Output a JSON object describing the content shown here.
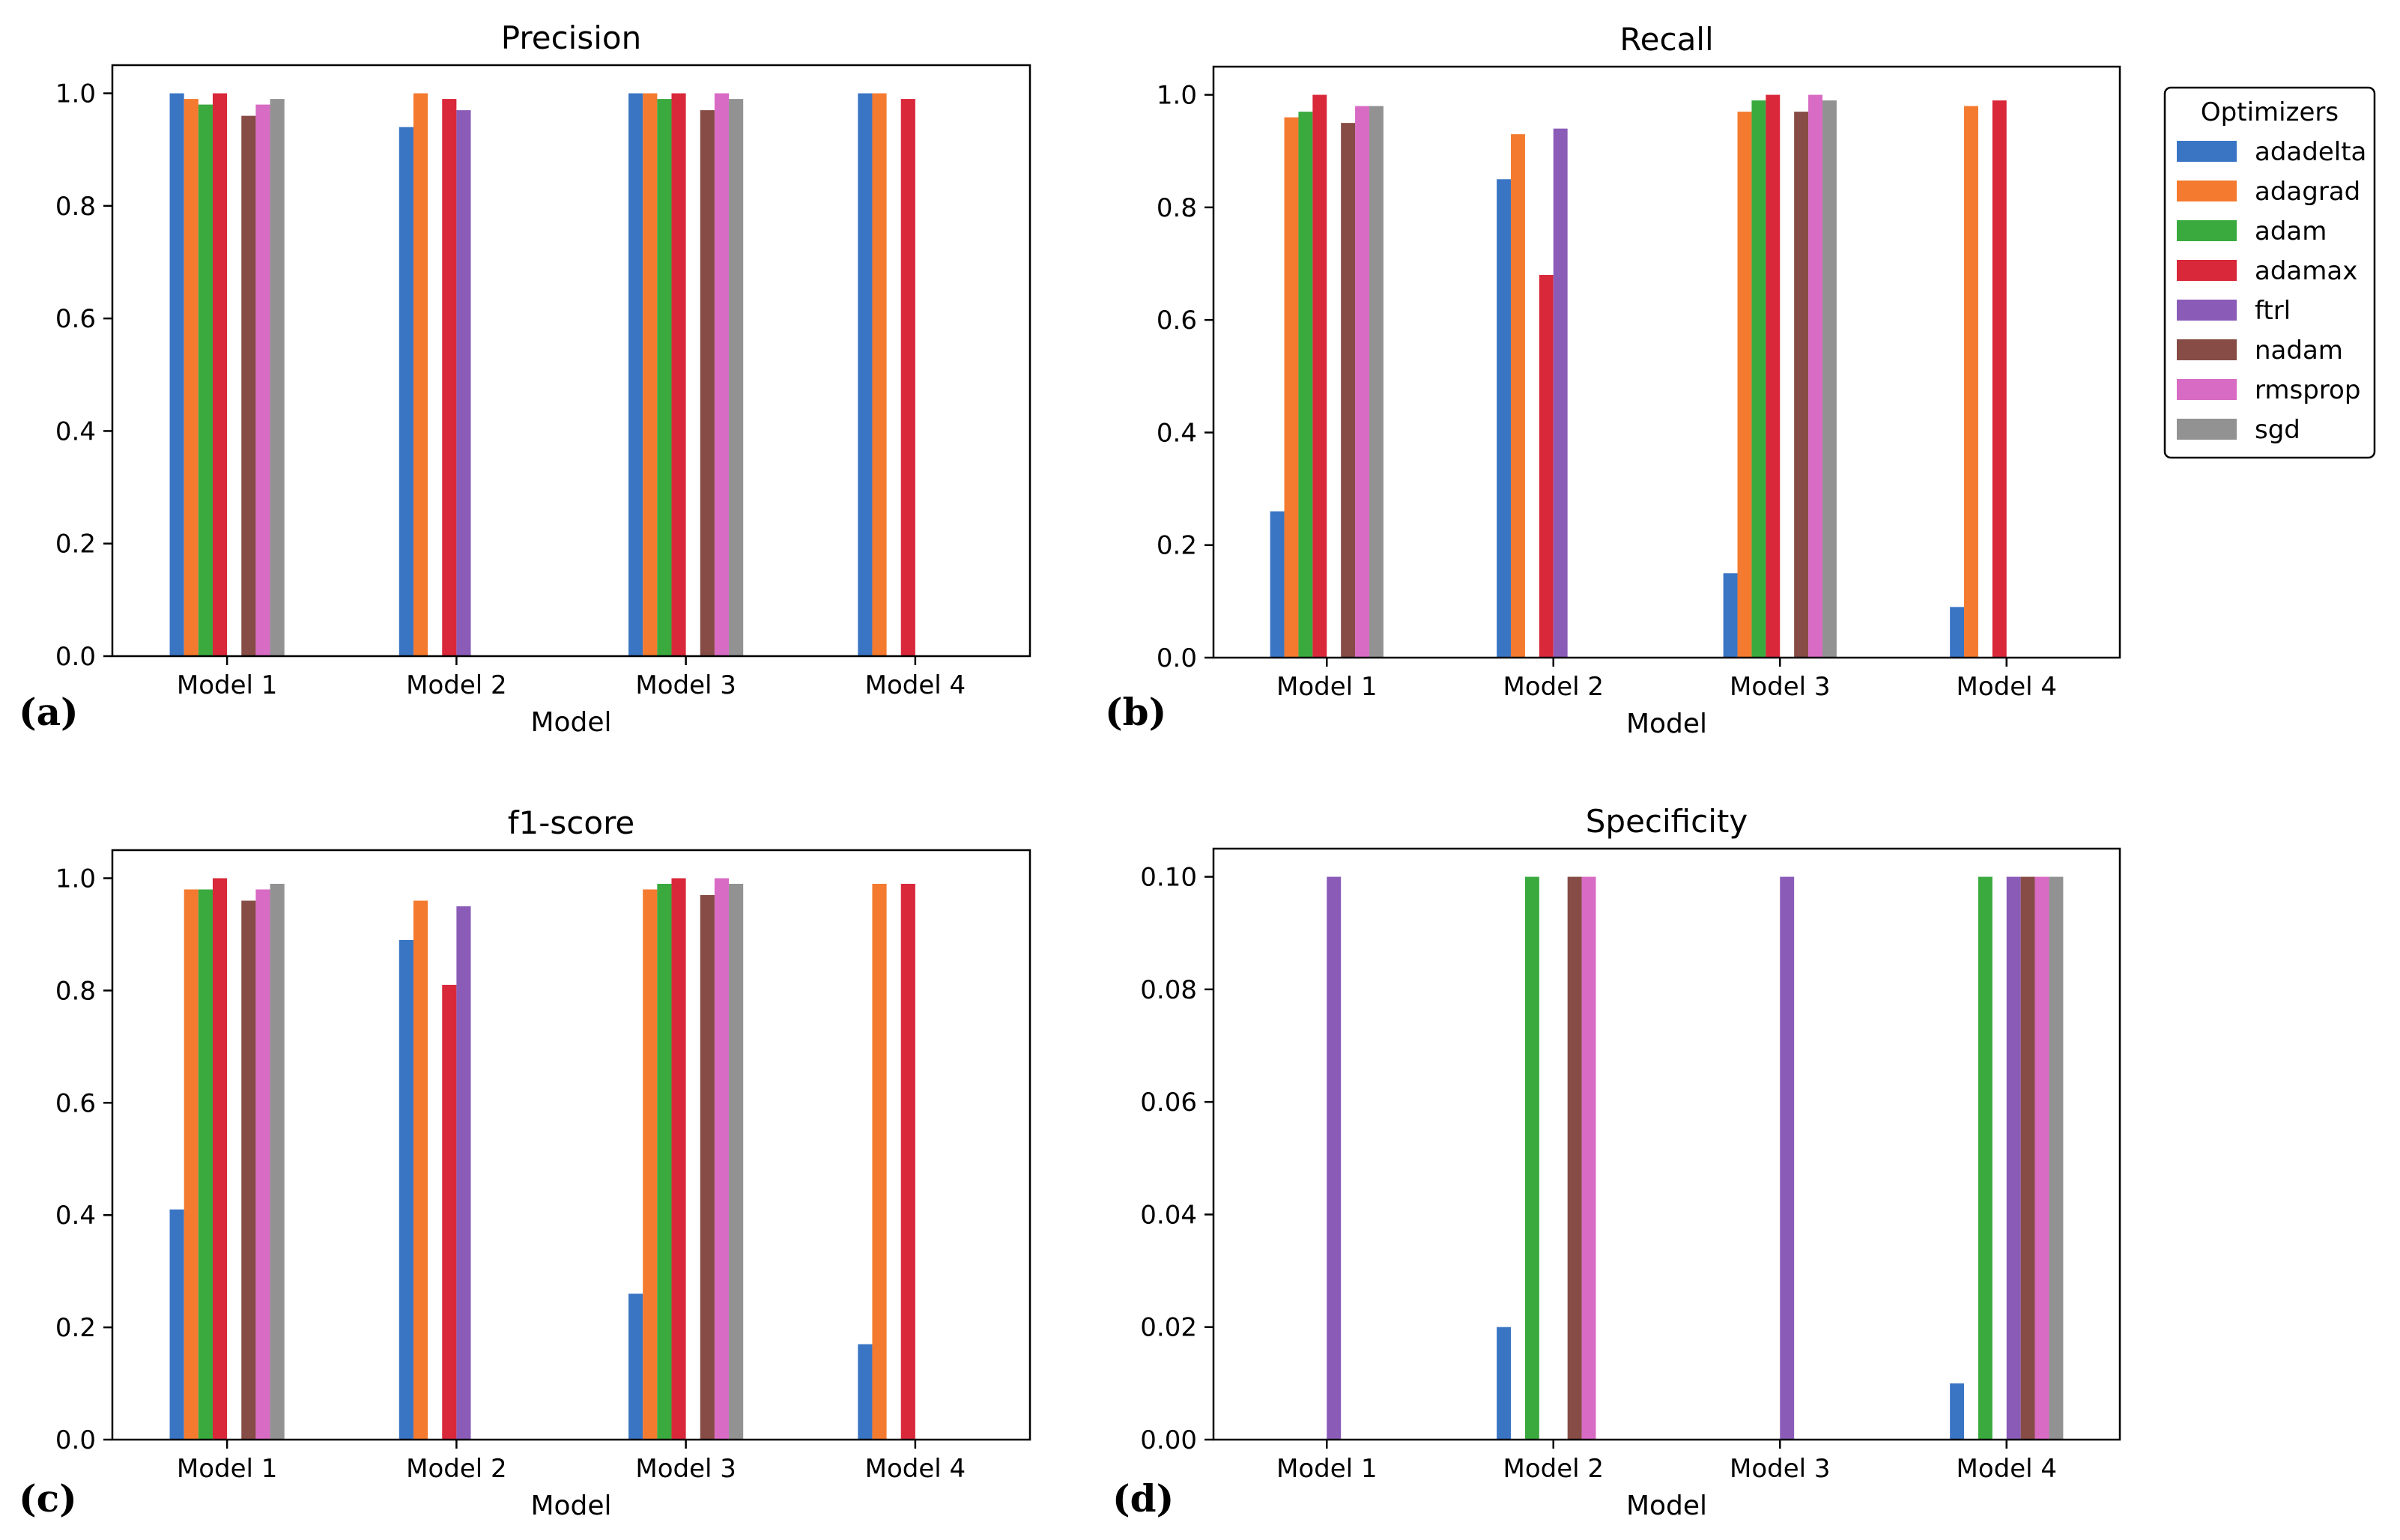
{
  "chart_data": [
    {
      "type": "bar",
      "title": "Precision",
      "xlabel": "Model",
      "ylabel": "",
      "panel_label": "(a)",
      "categories": [
        "Model 1",
        "Model 2",
        "Model 3",
        "Model 4"
      ],
      "ylim": [
        0,
        1.05
      ],
      "yticks": [
        "0.0",
        "0.2",
        "0.4",
        "0.6",
        "0.8",
        "1.0"
      ],
      "series": [
        {
          "name": "adadelta",
          "values": [
            1.0,
            0.94,
            1.0,
            1.0
          ]
        },
        {
          "name": "adagrad",
          "values": [
            0.99,
            1.0,
            1.0,
            1.0
          ]
        },
        {
          "name": "adam",
          "values": [
            0.98,
            0.0,
            0.99,
            0.0
          ]
        },
        {
          "name": "adamax",
          "values": [
            1.0,
            0.99,
            1.0,
            0.99
          ]
        },
        {
          "name": "ftrl",
          "values": [
            0.0,
            0.97,
            0.0,
            0.0
          ]
        },
        {
          "name": "nadam",
          "values": [
            0.96,
            0.0,
            0.97,
            0.0
          ]
        },
        {
          "name": "rmsprop",
          "values": [
            0.98,
            0.0,
            1.0,
            0.0
          ]
        },
        {
          "name": "sgd",
          "values": [
            0.99,
            0.0,
            0.99,
            0.0
          ]
        }
      ]
    },
    {
      "type": "bar",
      "title": "Recall",
      "xlabel": "Model",
      "ylabel": "",
      "panel_label": "(b)",
      "categories": [
        "Model 1",
        "Model 2",
        "Model 3",
        "Model 4"
      ],
      "ylim": [
        0,
        1.05
      ],
      "yticks": [
        "0.0",
        "0.2",
        "0.4",
        "0.6",
        "0.8",
        "1.0"
      ],
      "series": [
        {
          "name": "adadelta",
          "values": [
            0.26,
            0.85,
            0.15,
            0.09
          ]
        },
        {
          "name": "adagrad",
          "values": [
            0.96,
            0.93,
            0.97,
            0.98
          ]
        },
        {
          "name": "adam",
          "values": [
            0.97,
            0.0,
            0.99,
            0.0
          ]
        },
        {
          "name": "adamax",
          "values": [
            1.0,
            0.68,
            1.0,
            0.99
          ]
        },
        {
          "name": "ftrl",
          "values": [
            0.0,
            0.94,
            0.0,
            0.0
          ]
        },
        {
          "name": "nadam",
          "values": [
            0.95,
            0.0,
            0.97,
            0.0
          ]
        },
        {
          "name": "rmsprop",
          "values": [
            0.98,
            0.0,
            1.0,
            0.0
          ]
        },
        {
          "name": "sgd",
          "values": [
            0.98,
            0.0,
            0.99,
            0.0
          ]
        }
      ]
    },
    {
      "type": "bar",
      "title": "f1-score",
      "xlabel": "Model",
      "ylabel": "",
      "panel_label": "(c)",
      "categories": [
        "Model 1",
        "Model 2",
        "Model 3",
        "Model 4"
      ],
      "ylim": [
        0,
        1.05
      ],
      "yticks": [
        "0.0",
        "0.2",
        "0.4",
        "0.6",
        "0.8",
        "1.0"
      ],
      "series": [
        {
          "name": "adadelta",
          "values": [
            0.41,
            0.89,
            0.26,
            0.17
          ]
        },
        {
          "name": "adagrad",
          "values": [
            0.98,
            0.96,
            0.98,
            0.99
          ]
        },
        {
          "name": "adam",
          "values": [
            0.98,
            0.0,
            0.99,
            0.0
          ]
        },
        {
          "name": "adamax",
          "values": [
            1.0,
            0.81,
            1.0,
            0.99
          ]
        },
        {
          "name": "ftrl",
          "values": [
            0.0,
            0.95,
            0.0,
            0.0
          ]
        },
        {
          "name": "nadam",
          "values": [
            0.96,
            0.0,
            0.97,
            0.0
          ]
        },
        {
          "name": "rmsprop",
          "values": [
            0.98,
            0.0,
            1.0,
            0.0
          ]
        },
        {
          "name": "sgd",
          "values": [
            0.99,
            0.0,
            0.99,
            0.0
          ]
        }
      ]
    },
    {
      "type": "bar",
      "title": "Specificity",
      "xlabel": "Model",
      "ylabel": "",
      "panel_label": "(d)",
      "categories": [
        "Model 1",
        "Model 2",
        "Model 3",
        "Model 4"
      ],
      "ylim": [
        0,
        0.105
      ],
      "yticks": [
        "0.00",
        "0.02",
        "0.04",
        "0.06",
        "0.08",
        "0.10"
      ],
      "series": [
        {
          "name": "adadelta",
          "values": [
            0.0,
            0.02,
            0.0,
            0.01
          ]
        },
        {
          "name": "adagrad",
          "values": [
            0.0,
            0.0,
            0.0,
            0.0
          ]
        },
        {
          "name": "adam",
          "values": [
            0.0,
            0.1,
            0.0,
            0.1
          ]
        },
        {
          "name": "adamax",
          "values": [
            0.0,
            0.0,
            0.0,
            0.0
          ]
        },
        {
          "name": "ftrl",
          "values": [
            0.1,
            0.0,
            0.1,
            0.1
          ]
        },
        {
          "name": "nadam",
          "values": [
            0.0,
            0.1,
            0.0,
            0.1
          ]
        },
        {
          "name": "rmsprop",
          "values": [
            0.0,
            0.1,
            0.0,
            0.1
          ]
        },
        {
          "name": "sgd",
          "values": [
            0.0,
            0.0,
            0.0,
            0.1
          ]
        }
      ]
    }
  ],
  "legend": {
    "title": "Optimizers",
    "placement": "right of panel (b)",
    "items": [
      "adadelta",
      "adagrad",
      "adam",
      "adamax",
      "ftrl",
      "nadam",
      "rmsprop",
      "sgd"
    ]
  },
  "colors": {
    "adadelta": "#3a75c4",
    "adagrad": "#f47a2f",
    "adam": "#3aaa3f",
    "adamax": "#d9283a",
    "ftrl": "#8a5cb8",
    "nadam": "#864c45",
    "rmsprop": "#d86bc4",
    "sgd": "#929292"
  },
  "grid": false
}
